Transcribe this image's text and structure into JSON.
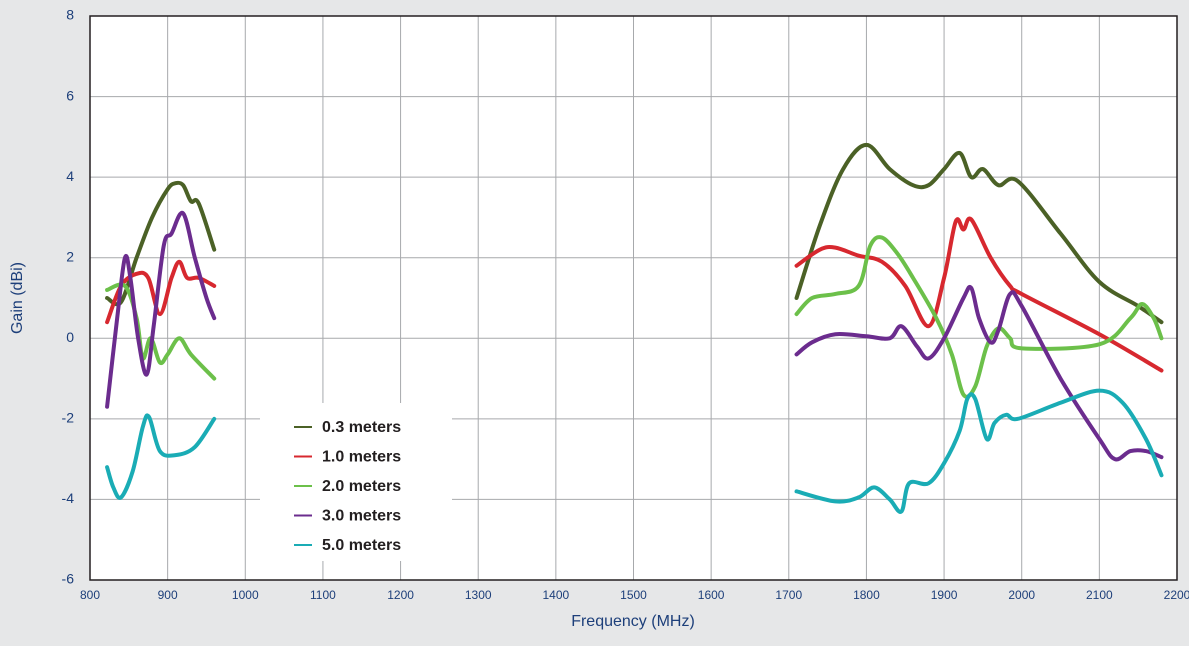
{
  "chart_data": {
    "type": "line",
    "xlabel": "Frequency (MHz)",
    "ylabel": "Gain (dBi)",
    "xlim": [
      800,
      2200
    ],
    "xticks": [
      800,
      900,
      1000,
      1100,
      1200,
      1300,
      1400,
      1500,
      1600,
      1700,
      1800,
      1900,
      2000,
      2100,
      2200
    ],
    "ylim": [
      -6,
      8
    ],
    "yticks": [
      -6,
      -4,
      -2,
      0,
      2,
      4,
      6,
      8
    ],
    "grid": true,
    "legend": "lower left",
    "series": [
      {
        "name": "0.3 meters",
        "color": "#4b6126",
        "x": [
          822,
          840,
          860,
          880,
          900,
          910,
          920,
          930,
          940,
          960,
          null,
          1710,
          1740,
          1770,
          1800,
          1830,
          1860,
          1880,
          1900,
          1920,
          1935,
          1950,
          1970,
          1995,
          2050,
          2100,
          2150,
          2180
        ],
        "values": [
          1.0,
          0.9,
          2.0,
          3.0,
          3.7,
          3.85,
          3.8,
          3.4,
          3.35,
          2.2,
          null,
          1.0,
          2.8,
          4.2,
          4.8,
          4.2,
          3.8,
          3.8,
          4.2,
          4.6,
          4.0,
          4.2,
          3.8,
          3.9,
          2.6,
          1.4,
          0.8,
          0.4
        ]
      },
      {
        "name": "1.0 meters",
        "color": "#d7282f",
        "x": [
          822,
          840,
          860,
          875,
          890,
          905,
          915,
          925,
          940,
          960,
          null,
          1710,
          1740,
          1760,
          1790,
          1820,
          1850,
          1880,
          1900,
          1915,
          1925,
          1935,
          1960,
          1985,
          2000,
          2100,
          2180
        ],
        "values": [
          0.4,
          1.3,
          1.6,
          1.5,
          0.6,
          1.5,
          1.9,
          1.5,
          1.5,
          1.3,
          null,
          1.8,
          2.2,
          2.25,
          2.05,
          1.9,
          1.3,
          0.3,
          1.5,
          2.9,
          2.7,
          2.95,
          2.0,
          1.3,
          1.1,
          0.1,
          -0.8
        ]
      },
      {
        "name": "2.0 meters",
        "color": "#6cc04a",
        "x": [
          822,
          845,
          860,
          868,
          878,
          890,
          900,
          915,
          930,
          960,
          null,
          1710,
          1730,
          1760,
          1790,
          1805,
          1820,
          1840,
          1860,
          1890,
          1910,
          1925,
          1940,
          1955,
          1970,
          1985,
          2000,
          2100,
          2140,
          2155,
          2170,
          2180
        ],
        "values": [
          1.2,
          1.3,
          0.5,
          -0.5,
          0,
          -0.6,
          -0.4,
          0,
          -0.4,
          -1.0,
          null,
          0.6,
          1.0,
          1.1,
          1.3,
          2.3,
          2.5,
          2.1,
          1.5,
          0.5,
          -0.4,
          -1.4,
          -1.2,
          -0.2,
          0.25,
          0,
          -0.25,
          -0.15,
          0.5,
          0.85,
          0.5,
          0
        ]
      },
      {
        "name": "3.0 meters",
        "color": "#6b2c8e",
        "x": [
          822,
          835,
          845,
          852,
          862,
          873,
          882,
          895,
          905,
          920,
          935,
          950,
          960,
          null,
          1710,
          1730,
          1760,
          1800,
          1830,
          1845,
          1865,
          1880,
          1900,
          1925,
          1935,
          1945,
          1960,
          1970,
          1985,
          2000,
          2050,
          2100,
          2120,
          2140,
          2160,
          2180
        ],
        "values": [
          -1.7,
          0.5,
          2.0,
          1.5,
          0,
          -0.9,
          0.3,
          2.3,
          2.6,
          3.1,
          2.0,
          1.0,
          0.5,
          null,
          -0.4,
          -0.1,
          0.1,
          0.05,
          0,
          0.3,
          -0.2,
          -0.5,
          0,
          1.0,
          1.25,
          0.5,
          -0.1,
          0.2,
          1.1,
          0.8,
          -1,
          -2.5,
          -3.0,
          -2.8,
          -2.8,
          -2.95
        ]
      },
      {
        "name": "5.0 meters",
        "color": "#1aacb5",
        "x": [
          822,
          830,
          840,
          855,
          868,
          876,
          890,
          910,
          935,
          960,
          null,
          1710,
          1760,
          1790,
          1810,
          1830,
          1845,
          1855,
          1880,
          1900,
          1920,
          1930,
          1940,
          1955,
          1965,
          1980,
          1995,
          2050,
          2100,
          2130,
          2160,
          2180
        ],
        "values": [
          -3.2,
          -3.7,
          -3.95,
          -3.3,
          -2.2,
          -1.95,
          -2.8,
          -2.9,
          -2.7,
          -2.0,
          null,
          -3.8,
          -4.05,
          -3.95,
          -3.7,
          -4.0,
          -4.3,
          -3.6,
          -3.6,
          -3.1,
          -2.3,
          -1.5,
          -1.5,
          -2.5,
          -2.1,
          -1.9,
          -2.0,
          -1.6,
          -1.3,
          -1.6,
          -2.5,
          -3.4
        ]
      }
    ]
  }
}
